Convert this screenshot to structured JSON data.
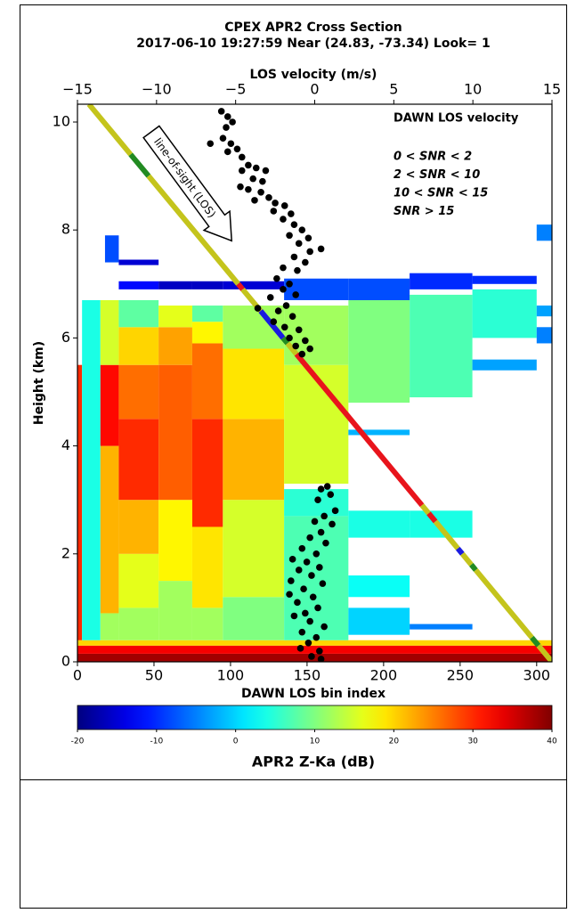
{
  "chart_data": {
    "type": "radar_cross_section",
    "title": "CPEX   APR2 Cross Section",
    "subtitle": "2017-06-10 19:27:59  Near (24.83, -73.34)  Look= 1",
    "xlabel": "DAWN LOS bin index",
    "ylabel": "Height (km)",
    "x2label": "LOS velocity (m/s)",
    "xlim": [
      0,
      310
    ],
    "xticks": [
      0,
      50,
      100,
      150,
      200,
      250,
      300
    ],
    "ylim": [
      0,
      10.33
    ],
    "yticks": [
      0,
      2,
      4,
      6,
      8,
      10
    ],
    "x2lim": [
      -15,
      15
    ],
    "x2ticks": [
      {
        "value": -15,
        "label": "−15"
      },
      {
        "value": -10,
        "label": "−10"
      },
      {
        "value": -5,
        "label": "−5"
      },
      0,
      5,
      10,
      15
    ],
    "colormap": "jet",
    "clim": [
      -20,
      40
    ],
    "cticks": [
      -20,
      -10,
      0,
      10,
      20,
      30,
      40
    ],
    "clabel": "APR2 Z-Ka (dB)",
    "reflectivity": [
      {
        "x": [
          0,
          310
        ],
        "y": [
          0,
          0.15
        ],
        "value": 38
      },
      {
        "x": [
          0,
          310
        ],
        "y": [
          0.15,
          0.3
        ],
        "value": 33
      },
      {
        "x": [
          0,
          310
        ],
        "y": [
          0.3,
          0.4
        ],
        "value": 20
      },
      {
        "x": [
          0,
          3
        ],
        "y": [
          0.4,
          5.5
        ],
        "value": 30
      },
      {
        "x": [
          3,
          15
        ],
        "y": [
          0.4,
          6.7
        ],
        "value": 4
      },
      {
        "x": [
          15,
          27
        ],
        "y": [
          0.4,
          0.9
        ],
        "value": 12
      },
      {
        "x": [
          15,
          27
        ],
        "y": [
          0.9,
          4
        ],
        "value": 22
      },
      {
        "x": [
          15,
          27
        ],
        "y": [
          4,
          5.5
        ],
        "value": 32
      },
      {
        "x": [
          15,
          27
        ],
        "y": [
          5.5,
          6.7
        ],
        "value": 15
      },
      {
        "x": [
          18,
          27
        ],
        "y": [
          7.4,
          7.9
        ],
        "value": -8
      },
      {
        "x": [
          27,
          53
        ],
        "y": [
          0.4,
          1
        ],
        "value": 12
      },
      {
        "x": [
          27,
          53
        ],
        "y": [
          1,
          2
        ],
        "value": 16
      },
      {
        "x": [
          27,
          53
        ],
        "y": [
          2,
          3
        ],
        "value": 22
      },
      {
        "x": [
          27,
          53
        ],
        "y": [
          3,
          4.5
        ],
        "value": 30
      },
      {
        "x": [
          27,
          53
        ],
        "y": [
          4.5,
          5.5
        ],
        "value": 26
      },
      {
        "x": [
          27,
          53
        ],
        "y": [
          5.5,
          6.2
        ],
        "value": 20
      },
      {
        "x": [
          27,
          53
        ],
        "y": [
          6.2,
          6.7
        ],
        "value": 8
      },
      {
        "x": [
          27,
          53
        ],
        "y": [
          6.9,
          7.05
        ],
        "value": -12
      },
      {
        "x": [
          27,
          53
        ],
        "y": [
          7.35,
          7.45
        ],
        "value": -15
      },
      {
        "x": [
          53,
          75
        ],
        "y": [
          0.4,
          1.5
        ],
        "value": 12
      },
      {
        "x": [
          53,
          75
        ],
        "y": [
          1.5,
          3
        ],
        "value": 18
      },
      {
        "x": [
          53,
          75
        ],
        "y": [
          3,
          5.5
        ],
        "value": 27
      },
      {
        "x": [
          53,
          75
        ],
        "y": [
          5.5,
          6.2
        ],
        "value": 23
      },
      {
        "x": [
          53,
          75
        ],
        "y": [
          6.2,
          6.6
        ],
        "value": 16
      },
      {
        "x": [
          53,
          75
        ],
        "y": [
          6.9,
          7.05
        ],
        "value": -16
      },
      {
        "x": [
          75,
          95
        ],
        "y": [
          0.4,
          1
        ],
        "value": 12
      },
      {
        "x": [
          75,
          95
        ],
        "y": [
          1,
          2.5
        ],
        "value": 19
      },
      {
        "x": [
          75,
          95
        ],
        "y": [
          2.5,
          4.5
        ],
        "value": 30
      },
      {
        "x": [
          75,
          95
        ],
        "y": [
          4.5,
          5.9
        ],
        "value": 26
      },
      {
        "x": [
          75,
          95
        ],
        "y": [
          5.9,
          6.3
        ],
        "value": 18
      },
      {
        "x": [
          75,
          95
        ],
        "y": [
          6.3,
          6.6
        ],
        "value": 8
      },
      {
        "x": [
          75,
          95
        ],
        "y": [
          6.9,
          7.05
        ],
        "value": -16
      },
      {
        "x": [
          95,
          135
        ],
        "y": [
          0.4,
          1.2
        ],
        "value": 10
      },
      {
        "x": [
          95,
          135
        ],
        "y": [
          1.2,
          3
        ],
        "value": 15
      },
      {
        "x": [
          95,
          135
        ],
        "y": [
          3,
          4.5
        ],
        "value": 22
      },
      {
        "x": [
          95,
          135
        ],
        "y": [
          4.5,
          5.8
        ],
        "value": 19
      },
      {
        "x": [
          95,
          135
        ],
        "y": [
          5.8,
          6.6
        ],
        "value": 12
      },
      {
        "x": [
          95,
          135
        ],
        "y": [
          6.9,
          7.05
        ],
        "value": -15
      },
      {
        "x": [
          135,
          177
        ],
        "y": [
          0.4,
          2.7
        ],
        "value": 7
      },
      {
        "x": [
          135,
          177
        ],
        "y": [
          2.7,
          3.2
        ],
        "value": 5
      },
      {
        "x": [
          135,
          177
        ],
        "y": [
          3.3,
          5.5
        ],
        "value": 15
      },
      {
        "x": [
          135,
          177
        ],
        "y": [
          5.5,
          6.6
        ],
        "value": 12
      },
      {
        "x": [
          135,
          177
        ],
        "y": [
          6.7,
          7.1
        ],
        "value": -8
      },
      {
        "x": [
          177,
          217
        ],
        "y": [
          0.5,
          1
        ],
        "value": 0
      },
      {
        "x": [
          177,
          217
        ],
        "y": [
          1.2,
          1.6
        ],
        "value": 3
      },
      {
        "x": [
          177,
          217
        ],
        "y": [
          2.3,
          2.8
        ],
        "value": 4
      },
      {
        "x": [
          177,
          217
        ],
        "y": [
          4.2,
          4.3
        ],
        "value": -2
      },
      {
        "x": [
          177,
          217
        ],
        "y": [
          4.8,
          6.7
        ],
        "value": 10
      },
      {
        "x": [
          177,
          217
        ],
        "y": [
          6.7,
          7.1
        ],
        "value": -8
      },
      {
        "x": [
          217,
          258
        ],
        "y": [
          0.6,
          0.7
        ],
        "value": -5
      },
      {
        "x": [
          217,
          258
        ],
        "y": [
          2.3,
          2.8
        ],
        "value": 4
      },
      {
        "x": [
          217,
          258
        ],
        "y": [
          4.9,
          6.8
        ],
        "value": 7
      },
      {
        "x": [
          217,
          258
        ],
        "y": [
          6.9,
          7.2
        ],
        "value": -10
      },
      {
        "x": [
          258,
          300
        ],
        "y": [
          5.4,
          5.6
        ],
        "value": -3
      },
      {
        "x": [
          258,
          300
        ],
        "y": [
          6,
          6.9
        ],
        "value": 5
      },
      {
        "x": [
          258,
          300
        ],
        "y": [
          7,
          7.15
        ],
        "value": -10
      },
      {
        "x": [
          300,
          310
        ],
        "y": [
          5.9,
          6.2
        ],
        "value": -5
      },
      {
        "x": [
          300,
          310
        ],
        "y": [
          6.4,
          6.6
        ],
        "value": -3
      },
      {
        "x": [
          300,
          310
        ],
        "y": [
          7.8,
          8.1
        ],
        "value": -5
      }
    ],
    "los_line": {
      "x": [
        7.5,
        310
      ],
      "y": [
        10.33,
        0
      ],
      "segments": [
        {
          "y": [
            10.33,
            9.4
          ],
          "color": "#c4c41c"
        },
        {
          "y": [
            9.4,
            9.0
          ],
          "color": "#228b22"
        },
        {
          "y": [
            9.0,
            7.0
          ],
          "color": "#c4c41c"
        },
        {
          "y": [
            7.0,
            6.9
          ],
          "color": "#e8141c"
        },
        {
          "y": [
            6.9,
            6.5
          ],
          "color": "#c4c41c"
        },
        {
          "y": [
            6.5,
            6.0
          ],
          "color": "#1a1ae0"
        },
        {
          "y": [
            6.0,
            5.9
          ],
          "color": "#228b22"
        },
        {
          "y": [
            5.9,
            5.7
          ],
          "color": "#c4c41c"
        },
        {
          "y": [
            5.7,
            2.9
          ],
          "color": "#e8141c"
        },
        {
          "y": [
            2.9,
            2.75
          ],
          "color": "#c4c41c"
        },
        {
          "y": [
            2.75,
            2.6
          ],
          "color": "#e8141c"
        },
        {
          "y": [
            2.6,
            2.1
          ],
          "color": "#c4c41c"
        },
        {
          "y": [
            2.1,
            2.0
          ],
          "color": "#1a1ae0"
        },
        {
          "y": [
            2.0,
            1.8
          ],
          "color": "#c4c41c"
        },
        {
          "y": [
            1.8,
            1.7
          ],
          "color": "#228b22"
        },
        {
          "y": [
            1.7,
            0.45
          ],
          "color": "#c4c41c"
        },
        {
          "y": [
            0.45,
            0.3
          ],
          "color": "#228b22"
        },
        {
          "y": [
            0.3,
            0
          ],
          "color": "#c4c41c"
        }
      ]
    },
    "annotation": "line-of-sight (LOS)",
    "velocity_points": {
      "color": "#000000",
      "x": [
        -5.9,
        -5.5,
        -5.2,
        -5.6,
        -6.6,
        -5.8,
        -5.3,
        -4.9,
        -5.5,
        -4.6,
        -4.2,
        -3.7,
        -3.1,
        -4.6,
        -3.9,
        -4.7,
        -3.3,
        -4.2,
        -3.4,
        -2.9,
        -3.8,
        -2.5,
        -1.9,
        -2.6,
        -1.5,
        -2.0,
        -1.3,
        -0.8,
        -1.6,
        -0.4,
        -1.0,
        0.4,
        -0.3,
        -1.3,
        -0.6,
        -2.0,
        -1.1,
        -2.4,
        -1.6,
        -2.0,
        -1.2,
        -2.8,
        -1.8,
        -3.6,
        -2.3,
        -1.4,
        -2.6,
        -1.9,
        -1.0,
        -1.6,
        -0.6,
        -1.2,
        -0.3,
        -0.8,
        0.8,
        0.4,
        1.0,
        0.2,
        1.3,
        0.6,
        0.0,
        1.1,
        0.4,
        -0.3,
        0.7,
        -0.8,
        0.1,
        -1.4,
        -0.5,
        0.3,
        -1.0,
        -0.2,
        -1.5,
        0.5,
        -0.7,
        -1.6,
        -0.1,
        -1.1,
        0.2,
        -0.6,
        -1.3,
        -0.3,
        0.6,
        -0.8,
        0.1,
        -0.4,
        -0.9,
        0.3,
        -0.2,
        0.4
      ],
      "y": [
        10.2,
        10.1,
        10.0,
        9.9,
        9.6,
        9.7,
        9.6,
        9.5,
        9.45,
        9.35,
        9.2,
        9.15,
        9.1,
        9.1,
        8.95,
        8.8,
        8.9,
        8.75,
        8.7,
        8.6,
        8.55,
        8.5,
        8.45,
        8.35,
        8.3,
        8.2,
        8.1,
        8.0,
        7.9,
        7.85,
        7.75,
        7.65,
        7.6,
        7.5,
        7.4,
        7.3,
        7.25,
        7.1,
        7.0,
        6.9,
        6.8,
        6.75,
        6.6,
        6.55,
        6.5,
        6.4,
        6.3,
        6.2,
        6.15,
        6.0,
        5.95,
        5.85,
        5.8,
        5.7,
        3.25,
        3.2,
        3.1,
        3.0,
        2.8,
        2.7,
        2.6,
        2.55,
        2.4,
        2.3,
        2.2,
        2.1,
        2.0,
        1.9,
        1.85,
        1.75,
        1.7,
        1.6,
        1.5,
        1.45,
        1.35,
        1.25,
        1.2,
        1.1,
        1.0,
        0.9,
        0.85,
        0.75,
        0.65,
        0.55,
        0.45,
        0.35,
        0.25,
        0.2,
        0.1,
        0.05
      ]
    },
    "legend": {
      "title": "DAWN LOS velocity",
      "items": [
        {
          "label": "0 < SNR < 2",
          "color": "#e8141c"
        },
        {
          "label": "2 < SNR < 10",
          "color": "#daa520"
        },
        {
          "label": "10 < SNR < 15",
          "color": "#228b22"
        },
        {
          "label": "SNR > 15",
          "color": "#1a1ae0"
        }
      ]
    }
  }
}
